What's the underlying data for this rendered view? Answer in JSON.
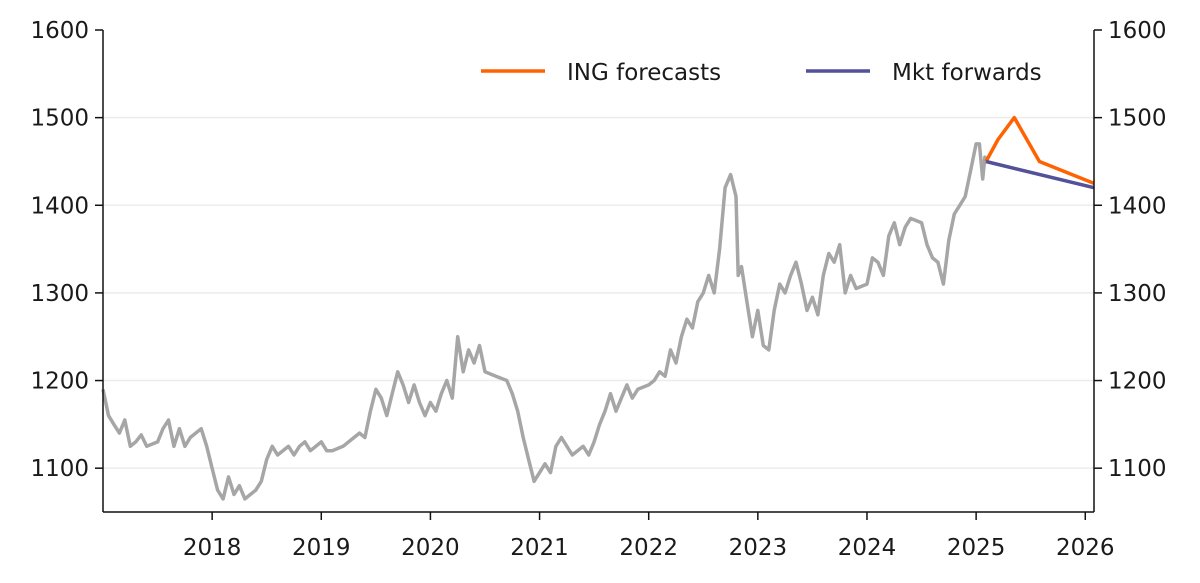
{
  "chart_data": {
    "type": "line",
    "title": "",
    "xlabel": "",
    "ylabel": "",
    "xlim": [
      2017.0,
      2026.08
    ],
    "ylim": [
      1050,
      1600
    ],
    "yticks": [
      "1100",
      "1200",
      "1300",
      "1400",
      "1500",
      "1600"
    ],
    "xticks": [
      "2018",
      "2019",
      "2020",
      "2021",
      "2022",
      "2023",
      "2024",
      "2025",
      "2026"
    ],
    "grid": "horizontal",
    "legend_position": "top-right",
    "colors": {
      "history": "#a6a6a6",
      "ing": "#ff6200",
      "mkt": "#525199"
    },
    "series": [
      {
        "name": "History",
        "legend": false,
        "x": [
          2017.0,
          2017.05,
          2017.1,
          2017.15,
          2017.2,
          2017.25,
          2017.3,
          2017.35,
          2017.4,
          2017.5,
          2017.55,
          2017.6,
          2017.65,
          2017.7,
          2017.75,
          2017.8,
          2017.9,
          2017.95,
          2018.0,
          2018.05,
          2018.1,
          2018.15,
          2018.2,
          2018.25,
          2018.3,
          2018.4,
          2018.45,
          2018.5,
          2018.55,
          2018.6,
          2018.7,
          2018.75,
          2018.8,
          2018.85,
          2018.9,
          2019.0,
          2019.05,
          2019.1,
          2019.2,
          2019.3,
          2019.35,
          2019.4,
          2019.45,
          2019.5,
          2019.55,
          2019.6,
          2019.65,
          2019.7,
          2019.75,
          2019.8,
          2019.85,
          2019.9,
          2019.95,
          2020.0,
          2020.05,
          2020.1,
          2020.15,
          2020.2,
          2020.25,
          2020.3,
          2020.35,
          2020.4,
          2020.45,
          2020.5,
          2020.6,
          2020.7,
          2020.75,
          2020.8,
          2020.85,
          2020.9,
          2020.95,
          2021.0,
          2021.05,
          2021.1,
          2021.15,
          2021.2,
          2021.3,
          2021.4,
          2021.45,
          2021.5,
          2021.55,
          2021.6,
          2021.65,
          2021.7,
          2021.75,
          2021.8,
          2021.85,
          2021.9,
          2022.0,
          2022.05,
          2022.1,
          2022.15,
          2022.2,
          2022.25,
          2022.3,
          2022.35,
          2022.4,
          2022.45,
          2022.5,
          2022.55,
          2022.6,
          2022.65,
          2022.7,
          2022.75,
          2022.8,
          2022.82,
          2022.85,
          2022.9,
          2022.95,
          2023.0,
          2023.05,
          2023.1,
          2023.15,
          2023.2,
          2023.25,
          2023.3,
          2023.35,
          2023.4,
          2023.45,
          2023.5,
          2023.55,
          2023.6,
          2023.65,
          2023.7,
          2023.75,
          2023.8,
          2023.85,
          2023.9,
          2024.0,
          2024.05,
          2024.1,
          2024.15,
          2024.2,
          2024.25,
          2024.3,
          2024.35,
          2024.4,
          2024.5,
          2024.55,
          2024.6,
          2024.65,
          2024.7,
          2024.75,
          2024.8,
          2024.85,
          2024.9,
          2024.95,
          2025.0,
          2025.03,
          2025.06,
          2025.08,
          2025.09
        ],
        "values": [
          1190,
          1160,
          1150,
          1140,
          1155,
          1125,
          1130,
          1138,
          1125,
          1130,
          1145,
          1155,
          1125,
          1145,
          1125,
          1135,
          1145,
          1125,
          1100,
          1075,
          1065,
          1090,
          1070,
          1080,
          1065,
          1075,
          1085,
          1110,
          1125,
          1115,
          1125,
          1115,
          1125,
          1130,
          1120,
          1130,
          1120,
          1120,
          1125,
          1135,
          1140,
          1135,
          1165,
          1190,
          1180,
          1160,
          1185,
          1210,
          1195,
          1175,
          1195,
          1175,
          1160,
          1175,
          1165,
          1185,
          1200,
          1180,
          1250,
          1210,
          1235,
          1220,
          1240,
          1210,
          1205,
          1200,
          1185,
          1165,
          1135,
          1110,
          1085,
          1095,
          1105,
          1095,
          1125,
          1135,
          1115,
          1125,
          1115,
          1130,
          1150,
          1165,
          1185,
          1165,
          1180,
          1195,
          1180,
          1190,
          1195,
          1200,
          1210,
          1205,
          1235,
          1220,
          1250,
          1270,
          1260,
          1290,
          1300,
          1320,
          1300,
          1350,
          1420,
          1435,
          1410,
          1320,
          1330,
          1290,
          1250,
          1280,
          1240,
          1235,
          1280,
          1310,
          1300,
          1320,
          1335,
          1310,
          1280,
          1295,
          1275,
          1320,
          1345,
          1335,
          1355,
          1300,
          1320,
          1305,
          1310,
          1340,
          1335,
          1320,
          1365,
          1380,
          1355,
          1375,
          1385,
          1380,
          1355,
          1340,
          1335,
          1310,
          1360,
          1390,
          1400,
          1410,
          1440,
          1470,
          1470,
          1430,
          1455,
          1450
        ]
      },
      {
        "name": "ING forecasts",
        "legend": true,
        "x": [
          2025.09,
          2025.2,
          2025.35,
          2025.58,
          2026.08
        ],
        "values": [
          1450,
          1475,
          1500,
          1450,
          1425
        ]
      },
      {
        "name": "Mkt forwards",
        "legend": true,
        "x": [
          2025.09,
          2026.08
        ],
        "values": [
          1450,
          1420
        ]
      }
    ]
  }
}
